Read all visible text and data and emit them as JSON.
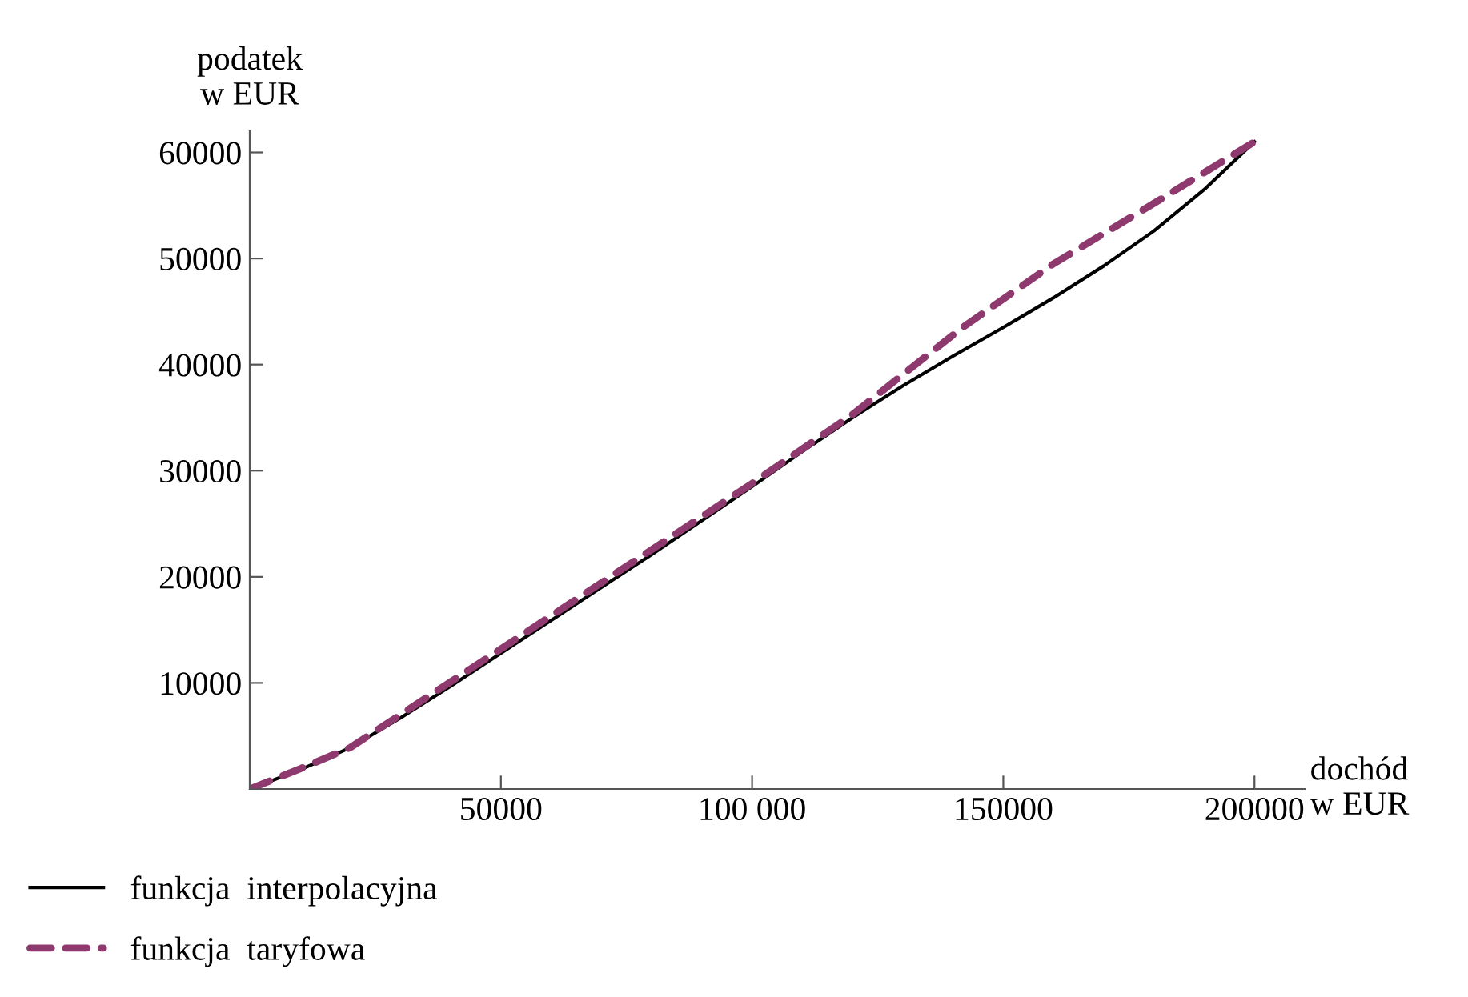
{
  "chart_data": {
    "type": "line",
    "xlabel": "dochód\nw EUR",
    "ylabel": "podatek\nw EUR",
    "xlim": [
      0,
      210000
    ],
    "ylim": [
      0,
      62000
    ],
    "xticks": [
      {
        "value": 50000,
        "label": "50000"
      },
      {
        "value": 100000,
        "label": "100 000"
      },
      {
        "value": 150000,
        "label": "150000"
      },
      {
        "value": 200000,
        "label": "200000"
      }
    ],
    "yticks": [
      {
        "value": 10000,
        "label": "10000"
      },
      {
        "value": 20000,
        "label": "20000"
      },
      {
        "value": 30000,
        "label": "30000"
      },
      {
        "value": 40000,
        "label": "40000"
      },
      {
        "value": 50000,
        "label": "50000"
      },
      {
        "value": 60000,
        "label": "60000"
      }
    ],
    "grid": false,
    "legend": "bottom left",
    "series": [
      {
        "name": "funkcja  interpolacyjna",
        "color": "#000000",
        "line_style": "solid",
        "x": [
          0,
          10000,
          20000,
          30000,
          40000,
          50000,
          60000,
          70000,
          80000,
          90000,
          100000,
          110000,
          120000,
          130000,
          140000,
          150000,
          160000,
          170000,
          180000,
          190000,
          200000
        ],
        "values": [
          0,
          1800,
          3900,
          6700,
          9700,
          12800,
          15900,
          19000,
          22100,
          25300,
          28500,
          31800,
          35000,
          38000,
          40800,
          43500,
          46300,
          49300,
          52600,
          56500,
          61000
        ]
      },
      {
        "name": "funkcja  taryfowa",
        "color": "#8e3a6e",
        "line_style": "dashed",
        "x": [
          0,
          10000,
          20000,
          30000,
          50000,
          100000,
          120000,
          141600,
          160000,
          180000,
          200000
        ],
        "values": [
          0,
          1900,
          3900,
          7000,
          13200,
          28800,
          35300,
          43400,
          49500,
          55200,
          61000
        ]
      }
    ]
  }
}
